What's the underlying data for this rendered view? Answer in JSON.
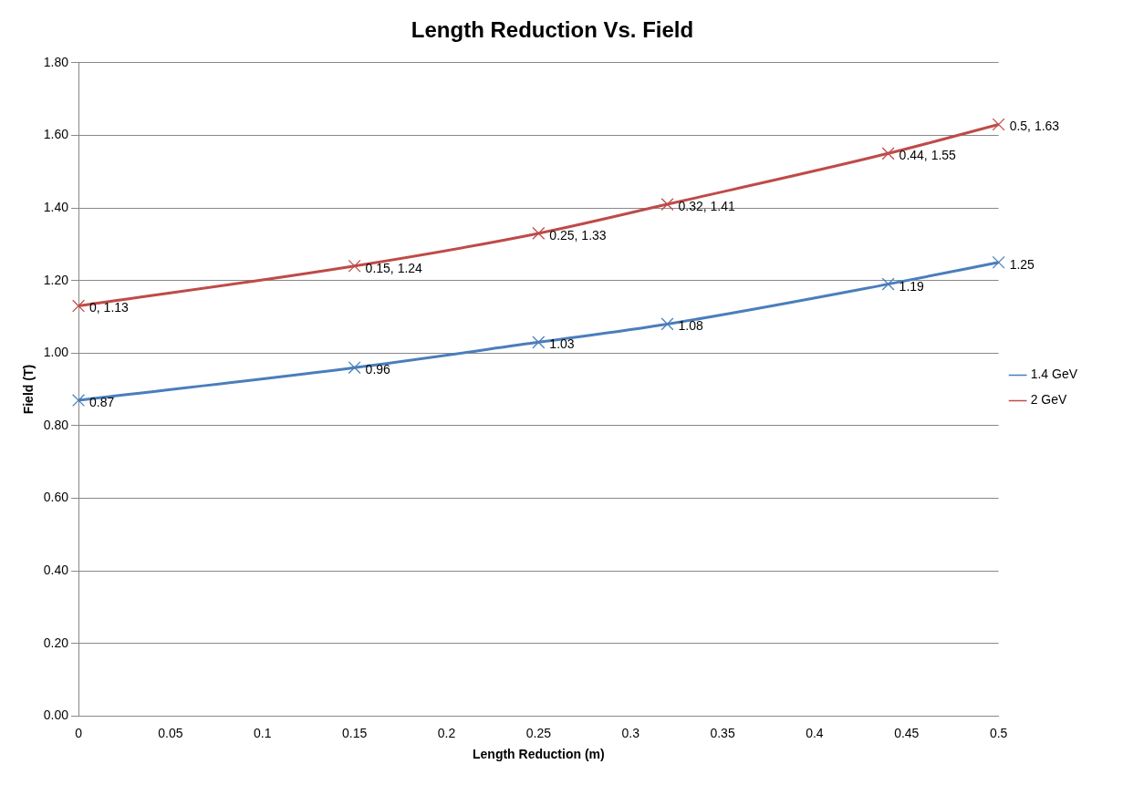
{
  "chart_data": {
    "type": "line",
    "title": "Length Reduction Vs. Field",
    "xlabel": "Length Reduction (m)",
    "ylabel": "Field (T)",
    "x": [
      0,
      0.15,
      0.25,
      0.32,
      0.44,
      0.5
    ],
    "series": [
      {
        "name": "1.4 GeV",
        "color": "#4a7ebb",
        "values": [
          0.87,
          0.96,
          1.03,
          1.08,
          1.19,
          1.25
        ],
        "value_labels": [
          "0.87",
          "0.96",
          "1.03",
          "1.08",
          "1.19",
          "1.25"
        ]
      },
      {
        "name": "2 GeV",
        "color": "#be4b48",
        "values": [
          1.13,
          1.24,
          1.33,
          1.41,
          1.55,
          1.63
        ],
        "value_labels": [
          "0, 1.13",
          "0.15, 1.24",
          "0.25, 1.33",
          "0.32, 1.41",
          "0.44, 1.55",
          "0.5, 1.63"
        ]
      }
    ],
    "xlim": [
      0,
      0.5
    ],
    "xticks": [
      0,
      0.05,
      0.1,
      0.15,
      0.2,
      0.25,
      0.3,
      0.35,
      0.4,
      0.45,
      0.5
    ],
    "ylim": [
      0,
      1.8
    ],
    "yticks": [
      {
        "value": 0,
        "label": "0.00"
      },
      {
        "value": 0.2,
        "label": "0.20"
      },
      {
        "value": 0.4,
        "label": "0.40"
      },
      {
        "value": 0.6,
        "label": "0.60"
      },
      {
        "value": 0.8,
        "label": "0.80"
      },
      {
        "value": 1,
        "label": "1.00"
      },
      {
        "value": 1.2,
        "label": "1.20"
      },
      {
        "value": 1.4,
        "label": "1.40"
      },
      {
        "value": 1.6,
        "label": "1.60"
      },
      {
        "value": 1.8,
        "label": "1.80"
      }
    ],
    "grid": "y",
    "legend": "right",
    "marker": "cross",
    "line_style": "solid"
  }
}
